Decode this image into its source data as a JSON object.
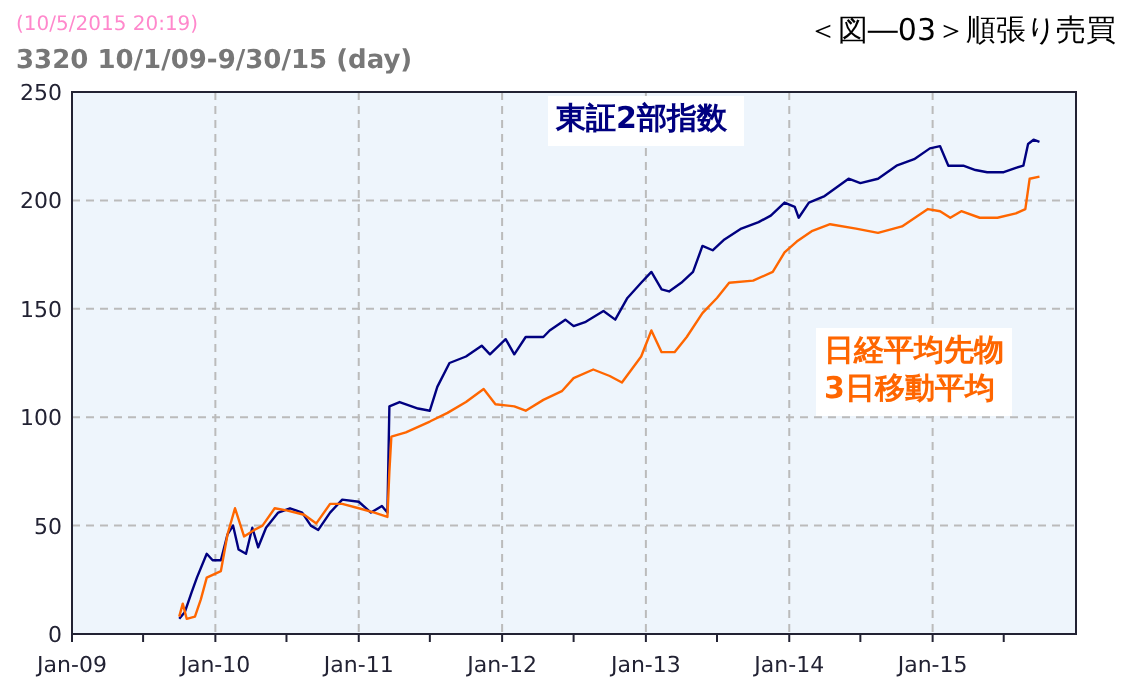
{
  "chart_data": {
    "type": "line",
    "title": "＜図―03＞順張り売買",
    "subtitle": "3320 10/1/09-9/30/15 (day)",
    "annotations": [
      "(10/5/2015 20:19)"
    ],
    "xlim": [
      "2009-01-01",
      "2016-01-01"
    ],
    "xticks": [
      {
        "value": "2009-01-01",
        "label": "Jan-09"
      },
      {
        "value": "2009-07-01",
        "label": null
      },
      {
        "value": "2010-01-01",
        "label": "Jan-10"
      },
      {
        "value": "2010-07-01",
        "label": null
      },
      {
        "value": "2011-01-01",
        "label": "Jan-11"
      },
      {
        "value": "2011-07-01",
        "label": null
      },
      {
        "value": "2012-01-01",
        "label": "Jan-12"
      },
      {
        "value": "2012-07-01",
        "label": null
      },
      {
        "value": "2013-01-01",
        "label": "Jan-13"
      },
      {
        "value": "2013-07-01",
        "label": null
      },
      {
        "value": "2014-01-01",
        "label": "Jan-14"
      },
      {
        "value": "2014-07-01",
        "label": null
      },
      {
        "value": "2015-01-01",
        "label": "Jan-15"
      },
      {
        "value": "2015-07-01",
        "label": null
      }
    ],
    "ylim": [
      0,
      250
    ],
    "yticks": [
      0,
      50,
      100,
      150,
      200,
      250
    ],
    "grid": true,
    "series": [
      {
        "name": "東証2部指数",
        "color": "#000080",
        "x": [
          "2009-10-01",
          "2009-10-15",
          "2009-11-01",
          "2009-11-15",
          "2009-12-10",
          "2009-12-25",
          "2010-01-15",
          "2010-02-01",
          "2010-02-15",
          "2010-03-01",
          "2010-03-20",
          "2010-04-05",
          "2010-04-20",
          "2010-05-10",
          "2010-06-10",
          "2010-07-10",
          "2010-08-10",
          "2010-09-01",
          "2010-09-20",
          "2010-10-20",
          "2010-11-20",
          "2011-01-01",
          "2011-02-01",
          "2011-03-01",
          "2011-03-15",
          "2011-03-20",
          "2011-04-15",
          "2011-06-01",
          "2011-07-01",
          "2011-07-20",
          "2011-08-20",
          "2011-10-01",
          "2011-11-10",
          "2011-12-01",
          "2012-01-10",
          "2012-02-01",
          "2012-03-01",
          "2012-04-15",
          "2012-05-01",
          "2012-06-10",
          "2012-07-01",
          "2012-08-01",
          "2012-09-15",
          "2012-10-15",
          "2012-11-15",
          "2012-12-20",
          "2013-01-15",
          "2013-02-10",
          "2013-03-01",
          "2013-04-01",
          "2013-05-01",
          "2013-05-25",
          "2013-06-20",
          "2013-07-20",
          "2013-09-01",
          "2013-10-15",
          "2013-11-15",
          "2013-12-20",
          "2014-01-15",
          "2014-01-25",
          "2014-02-20",
          "2014-04-01",
          "2014-06-01",
          "2014-07-01",
          "2014-08-15",
          "2014-10-01",
          "2014-11-15",
          "2014-12-25",
          "2015-01-20",
          "2015-02-10",
          "2015-03-20",
          "2015-04-20",
          "2015-05-20",
          "2015-07-01",
          "2015-08-01",
          "2015-08-20",
          "2015-09-01",
          "2015-09-15",
          "2015-09-30"
        ],
        "values": [
          7,
          10,
          19,
          26,
          37,
          34,
          34,
          46,
          50,
          39,
          37,
          49,
          40,
          49,
          56,
          58,
          56,
          50,
          48,
          56,
          62,
          61,
          56,
          59,
          56,
          105,
          107,
          104,
          103,
          114,
          125,
          128,
          133,
          129,
          136,
          129,
          137,
          137,
          140,
          145,
          142,
          144,
          149,
          145,
          155,
          162,
          167,
          159,
          158,
          162,
          167,
          179,
          177,
          182,
          187,
          190,
          193,
          199,
          197,
          192,
          199,
          202,
          210,
          208,
          210,
          216,
          219,
          224,
          225,
          216,
          216,
          214,
          213,
          213,
          215,
          216,
          226,
          228,
          227
        ]
      },
      {
        "name": "日経平均先物\n3日移動平均",
        "color": "#ff6600",
        "x": [
          "2009-10-01",
          "2009-10-10",
          "2009-10-20",
          "2009-11-10",
          "2009-11-25",
          "2009-12-10",
          "2010-01-15",
          "2010-02-01",
          "2010-02-20",
          "2010-03-15",
          "2010-04-10",
          "2010-05-01",
          "2010-06-01",
          "2010-07-01",
          "2010-08-15",
          "2010-09-15",
          "2010-10-20",
          "2010-11-20",
          "2011-01-01",
          "2011-02-10",
          "2011-03-15",
          "2011-03-20",
          "2011-03-25",
          "2011-05-01",
          "2011-07-01",
          "2011-08-15",
          "2011-10-01",
          "2011-11-15",
          "2011-12-15",
          "2012-02-01",
          "2012-03-01",
          "2012-04-15",
          "2012-06-01",
          "2012-07-01",
          "2012-08-20",
          "2012-10-01",
          "2012-11-01",
          "2012-12-20",
          "2013-01-15",
          "2013-02-10",
          "2013-03-15",
          "2013-04-15",
          "2013-05-25",
          "2013-07-01",
          "2013-08-01",
          "2013-10-01",
          "2013-11-20",
          "2013-12-20",
          "2014-01-20",
          "2014-03-01",
          "2014-04-15",
          "2014-06-20",
          "2014-08-15",
          "2014-10-15",
          "2014-12-20",
          "2015-01-20",
          "2015-02-15",
          "2015-03-15",
          "2015-05-01",
          "2015-06-15",
          "2015-08-01",
          "2015-08-25",
          "2015-09-05",
          "2015-09-30"
        ],
        "values": [
          8,
          14,
          7,
          8,
          16,
          26,
          29,
          46,
          58,
          45,
          48,
          50,
          58,
          57,
          55,
          51,
          60,
          60,
          58,
          56,
          54,
          75,
          91,
          93,
          98,
          102,
          107,
          113,
          106,
          105,
          103,
          108,
          112,
          118,
          122,
          119,
          116,
          128,
          140,
          130,
          130,
          137,
          148,
          155,
          162,
          163,
          167,
          176,
          181,
          186,
          189,
          187,
          185,
          188,
          196,
          195,
          192,
          195,
          192,
          192,
          194,
          196,
          210,
          211
        ]
      }
    ]
  }
}
